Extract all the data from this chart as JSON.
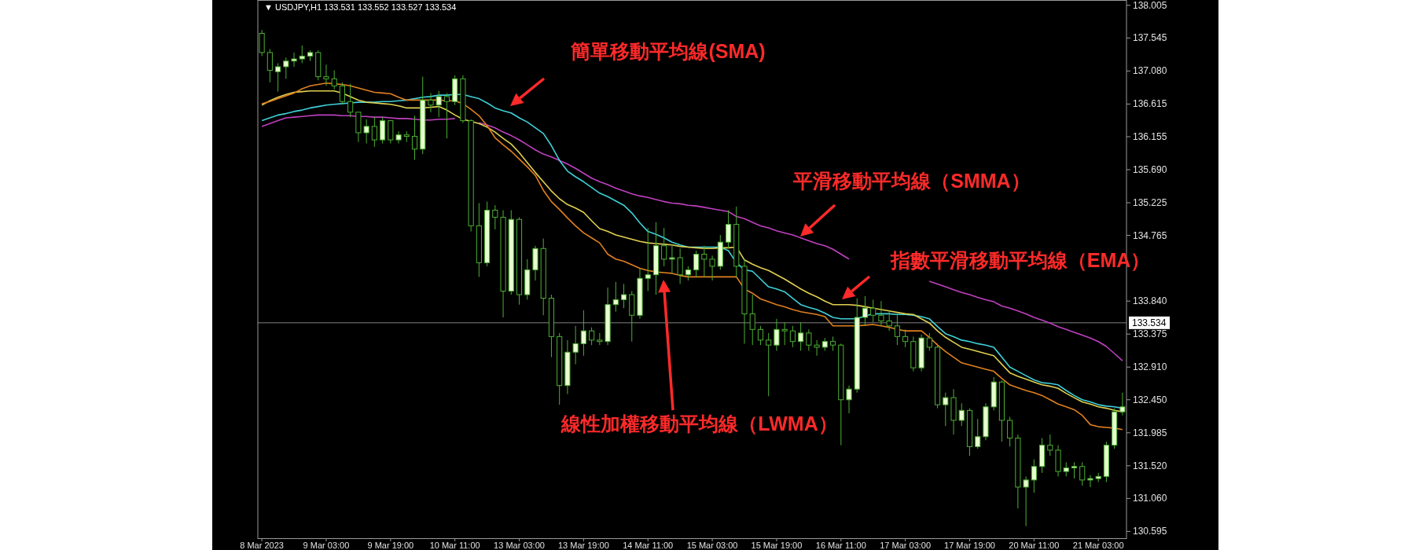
{
  "chart_data": {
    "type": "candlestick",
    "annotations": [
      "▼ USDJPY,H1  133.531 133.552 133.527 133.534",
      "簡單移動平均線(SMA)",
      "平滑移動平均線（SMMA）",
      "指數平滑移動平均線（EMA）",
      "線性加權移動平均線（LWMA）"
    ],
    "categories": [
      "8 Mar 2023",
      null,
      null,
      null,
      null,
      null,
      null,
      null,
      "9 Mar 03:00",
      null,
      null,
      null,
      null,
      null,
      null,
      null,
      "9 Mar 19:00",
      null,
      null,
      null,
      null,
      null,
      null,
      null,
      "10 Mar 11:00",
      null,
      null,
      null,
      null,
      null,
      null,
      null,
      "13 Mar 03:00",
      null,
      null,
      null,
      null,
      null,
      null,
      null,
      "13 Mar 19:00",
      null,
      null,
      null,
      null,
      null,
      null,
      null,
      "14 Mar 11:00",
      null,
      null,
      null,
      null,
      null,
      null,
      null,
      "15 Mar 03:00",
      null,
      null,
      null,
      null,
      null,
      null,
      null,
      "15 Mar 19:00",
      null,
      null,
      null,
      null,
      null,
      null,
      null,
      "16 Mar 11:00",
      null,
      null,
      null,
      null,
      null,
      null,
      null,
      "17 Mar 03:00",
      null,
      null,
      null,
      null,
      null,
      null,
      null,
      "17 Mar 19:00",
      null,
      null,
      null,
      null,
      null,
      null,
      null,
      "20 Mar 11:00",
      null,
      null,
      null,
      null,
      null,
      null,
      null,
      "21 Mar 03:00",
      null,
      null,
      null
    ],
    "ohlc": [
      [
        137.61,
        137.66,
        137.29,
        137.34
      ],
      [
        137.34,
        137.39,
        136.92,
        137.09
      ],
      [
        137.07,
        137.19,
        136.79,
        137.14
      ],
      [
        137.14,
        137.27,
        136.97,
        137.22
      ],
      [
        137.22,
        137.34,
        137.14,
        137.25
      ],
      [
        137.25,
        137.44,
        137.19,
        137.29
      ],
      [
        137.29,
        137.37,
        137.22,
        137.34
      ],
      [
        137.34,
        137.37,
        136.95,
        137.0
      ],
      [
        137.0,
        137.17,
        136.87,
        136.97
      ],
      [
        136.97,
        137.09,
        136.82,
        136.87
      ],
      [
        136.87,
        136.92,
        136.62,
        136.65
      ],
      [
        136.65,
        136.9,
        136.43,
        136.5
      ],
      [
        136.5,
        136.5,
        136.08,
        136.21
      ],
      [
        136.21,
        136.4,
        136.06,
        136.3
      ],
      [
        136.3,
        136.43,
        136.01,
        136.11
      ],
      [
        136.11,
        136.43,
        136.06,
        136.38
      ],
      [
        136.38,
        136.38,
        136.06,
        136.11
      ],
      [
        136.11,
        136.23,
        136.06,
        136.18
      ],
      [
        136.18,
        136.23,
        136.08,
        136.16
      ],
      [
        136.16,
        136.45,
        135.83,
        135.98
      ],
      [
        135.98,
        137.0,
        135.91,
        136.67
      ],
      [
        136.67,
        136.77,
        136.5,
        136.6
      ],
      [
        136.6,
        136.8,
        136.43,
        136.72
      ],
      [
        136.72,
        136.77,
        136.13,
        136.65
      ],
      [
        136.65,
        137.02,
        136.6,
        136.97
      ],
      [
        136.97,
        137.02,
        136.35,
        136.38
      ],
      [
        136.38,
        136.4,
        134.82,
        134.9
      ],
      [
        134.9,
        135.22,
        134.18,
        134.38
      ],
      [
        134.38,
        135.24,
        134.33,
        135.12
      ],
      [
        135.12,
        135.19,
        134.85,
        135.02
      ],
      [
        135.02,
        135.12,
        133.61,
        133.98
      ],
      [
        133.98,
        135.12,
        133.93,
        134.99
      ],
      [
        134.99,
        135.02,
        133.79,
        133.93
      ],
      [
        133.93,
        134.43,
        133.86,
        134.28
      ],
      [
        134.28,
        134.62,
        134.13,
        134.58
      ],
      [
        134.58,
        134.72,
        133.64,
        133.88
      ],
      [
        133.88,
        133.93,
        133.05,
        133.34
      ],
      [
        133.34,
        133.39,
        132.38,
        132.65
      ],
      [
        132.65,
        133.29,
        132.53,
        133.12
      ],
      [
        133.12,
        133.49,
        132.95,
        133.24
      ],
      [
        133.24,
        133.71,
        133.07,
        133.42
      ],
      [
        133.42,
        133.47,
        133.22,
        133.29
      ],
      [
        133.29,
        133.39,
        133.22,
        133.27
      ],
      [
        133.27,
        134.03,
        133.22,
        133.79
      ],
      [
        133.79,
        134.11,
        133.69,
        133.86
      ],
      [
        133.86,
        134.08,
        133.74,
        133.93
      ],
      [
        133.93,
        133.98,
        133.27,
        133.64
      ],
      [
        133.64,
        134.3,
        133.59,
        134.16
      ],
      [
        134.16,
        134.87,
        133.98,
        134.21
      ],
      [
        134.21,
        134.95,
        133.93,
        134.62
      ],
      [
        134.62,
        134.87,
        134.33,
        134.43
      ],
      [
        134.43,
        134.62,
        134.23,
        134.45
      ],
      [
        134.45,
        134.58,
        134.08,
        134.21
      ],
      [
        134.21,
        134.33,
        134.13,
        134.28
      ],
      [
        134.28,
        134.55,
        134.18,
        134.5
      ],
      [
        134.5,
        134.62,
        134.18,
        134.43
      ],
      [
        134.43,
        134.48,
        134.13,
        134.33
      ],
      [
        134.33,
        134.77,
        134.28,
        134.67
      ],
      [
        134.67,
        135.12,
        134.58,
        134.92
      ],
      [
        134.92,
        135.17,
        134.18,
        134.33
      ],
      [
        134.33,
        134.43,
        133.24,
        133.66
      ],
      [
        133.66,
        133.93,
        133.22,
        133.44
      ],
      [
        133.44,
        133.49,
        133.22,
        133.29
      ],
      [
        133.29,
        133.39,
        132.5,
        133.22
      ],
      [
        133.22,
        133.59,
        133.14,
        133.44
      ],
      [
        133.44,
        133.54,
        133.22,
        133.42
      ],
      [
        133.42,
        133.49,
        133.19,
        133.27
      ],
      [
        133.27,
        133.54,
        133.14,
        133.39
      ],
      [
        133.39,
        133.44,
        133.14,
        133.22
      ],
      [
        133.22,
        133.29,
        133.07,
        133.19
      ],
      [
        133.19,
        133.32,
        133.14,
        133.27
      ],
      [
        133.27,
        133.34,
        133.14,
        133.22
      ],
      [
        133.22,
        133.24,
        131.81,
        132.45
      ],
      [
        132.45,
        132.65,
        132.26,
        132.6
      ],
      [
        132.6,
        133.88,
        132.55,
        133.61
      ],
      [
        133.61,
        133.91,
        133.49,
        133.74
      ],
      [
        133.74,
        133.86,
        133.54,
        133.64
      ],
      [
        133.64,
        133.84,
        133.49,
        133.56
      ],
      [
        133.56,
        133.69,
        133.42,
        133.49
      ],
      [
        133.49,
        133.64,
        133.22,
        133.34
      ],
      [
        133.34,
        133.44,
        133.19,
        133.27
      ],
      [
        133.27,
        133.34,
        132.85,
        132.9
      ],
      [
        132.9,
        133.37,
        132.85,
        133.32
      ],
      [
        133.32,
        133.39,
        133.14,
        133.19
      ],
      [
        133.19,
        133.24,
        132.33,
        132.38
      ],
      [
        132.38,
        132.55,
        132.08,
        132.48
      ],
      [
        132.48,
        132.6,
        131.96,
        132.16
      ],
      [
        132.16,
        132.4,
        132.08,
        132.3
      ],
      [
        132.3,
        132.33,
        131.66,
        131.79
      ],
      [
        131.79,
        132.18,
        131.76,
        131.93
      ],
      [
        131.93,
        132.4,
        131.88,
        132.35
      ],
      [
        132.35,
        132.77,
        132.3,
        132.7
      ],
      [
        132.7,
        132.72,
        131.86,
        132.16
      ],
      [
        132.16,
        132.21,
        131.79,
        131.91
      ],
      [
        131.91,
        131.96,
        130.92,
        131.22
      ],
      [
        131.22,
        131.37,
        130.67,
        131.32
      ],
      [
        131.32,
        131.61,
        131.14,
        131.51
      ],
      [
        131.51,
        131.91,
        131.42,
        131.81
      ],
      [
        131.81,
        131.96,
        131.66,
        131.74
      ],
      [
        131.74,
        131.81,
        131.37,
        131.44
      ],
      [
        131.44,
        131.57,
        131.37,
        131.49
      ],
      [
        131.49,
        131.57,
        131.34,
        131.51
      ],
      [
        131.51,
        131.57,
        131.24,
        131.32
      ],
      [
        131.32,
        131.39,
        131.22,
        131.34
      ],
      [
        131.34,
        131.42,
        131.29,
        131.37
      ],
      [
        131.37,
        131.86,
        131.29,
        131.81
      ],
      [
        131.81,
        132.33,
        131.76,
        132.28
      ],
      [
        132.28,
        132.55,
        132.23,
        132.35
      ]
    ],
    "color": "#4caf32",
    "series": [
      {
        "type": "line",
        "color": "#c040c0",
        "values": [
          136.3,
          136.34,
          136.38,
          136.42,
          136.43,
          136.44,
          136.45,
          136.46,
          136.46,
          136.46,
          136.45,
          136.45,
          136.44,
          136.44,
          136.43,
          136.43,
          136.42,
          136.41,
          136.41,
          136.4,
          136.39,
          136.39,
          136.4,
          136.4,
          136.41,
          null,
          null,
          136.35,
          136.32,
          136.28,
          136.22,
          136.17,
          136.11,
          136.04,
          135.97,
          135.91,
          135.87,
          135.82,
          135.77,
          135.71,
          135.64,
          135.57,
          135.52,
          135.48,
          135.43,
          135.39,
          135.35,
          135.32,
          135.3,
          135.27,
          135.24,
          135.22,
          135.21,
          135.19,
          135.18,
          135.16,
          135.14,
          135.12,
          135.1,
          135.03,
          135.0,
          134.95,
          134.9,
          134.87,
          134.83,
          134.8,
          134.77,
          134.73,
          134.69,
          134.65,
          134.62,
          134.57,
          134.5,
          134.43,
          null,
          null,
          null,
          null,
          null,
          null,
          null,
          null,
          null,
          134.12,
          134.08,
          134.04,
          134.0,
          133.96,
          133.93,
          133.89,
          133.86,
          133.83,
          133.77,
          133.74,
          133.7,
          133.66,
          133.61,
          133.57,
          133.53,
          133.48,
          133.44,
          133.4,
          133.36,
          133.32,
          133.27,
          133.2,
          133.1,
          133.0
        ]
      },
      {
        "type": "line",
        "color": "#3fd0d8",
        "values": [
          136.38,
          136.42,
          136.46,
          136.48,
          136.51,
          136.53,
          136.56,
          136.58,
          136.6,
          136.61,
          136.62,
          136.63,
          136.64,
          136.64,
          136.64,
          136.65,
          136.65,
          136.66,
          136.67,
          136.69,
          136.71,
          136.72,
          136.74,
          136.74,
          136.75,
          136.75,
          136.72,
          136.69,
          136.63,
          136.56,
          136.52,
          136.49,
          136.42,
          136.36,
          136.28,
          136.2,
          136.03,
          135.82,
          135.67,
          135.59,
          135.52,
          135.44,
          135.36,
          135.31,
          135.25,
          135.19,
          135.08,
          134.94,
          134.82,
          134.78,
          134.73,
          134.67,
          134.63,
          134.6,
          134.6,
          134.6,
          134.6,
          134.6,
          134.55,
          134.38,
          134.28,
          134.26,
          134.15,
          134.04,
          134.01,
          133.97,
          133.88,
          133.79,
          133.75,
          133.72,
          133.67,
          133.61,
          133.59,
          133.59,
          133.59,
          133.63,
          133.66,
          133.66,
          133.66,
          133.65,
          133.65,
          133.64,
          133.62,
          133.59,
          133.48,
          133.38,
          133.34,
          133.29,
          133.27,
          133.24,
          133.22,
          133.19,
          133.05,
          132.91,
          132.85,
          132.79,
          132.73,
          132.69,
          132.68,
          132.66,
          132.58,
          132.51,
          132.45,
          132.42,
          132.38,
          132.36,
          132.35,
          132.33
        ]
      },
      {
        "type": "line",
        "color": "#e0d050",
        "values": [
          136.6,
          136.66,
          136.71,
          136.75,
          136.78,
          136.79,
          136.8,
          136.8,
          136.8,
          136.8,
          136.77,
          136.72,
          136.67,
          136.64,
          136.63,
          136.62,
          136.61,
          136.59,
          136.56,
          136.56,
          136.56,
          136.57,
          136.58,
          136.53,
          136.46,
          136.4,
          136.37,
          136.34,
          136.29,
          136.22,
          136.13,
          136.05,
          135.93,
          135.79,
          135.65,
          135.52,
          135.39,
          135.28,
          135.2,
          135.15,
          135.09,
          134.97,
          134.86,
          134.82,
          134.77,
          134.74,
          134.71,
          134.68,
          134.66,
          134.65,
          134.64,
          134.63,
          134.61,
          134.6,
          134.59,
          134.58,
          134.58,
          134.59,
          134.59,
          134.6,
          134.42,
          134.36,
          134.31,
          134.27,
          134.21,
          134.15,
          134.08,
          134.01,
          133.95,
          133.9,
          133.84,
          133.79,
          133.79,
          133.79,
          133.78,
          133.76,
          133.74,
          133.72,
          133.7,
          133.68,
          133.66,
          133.65,
          133.59,
          133.53,
          133.42,
          133.33,
          133.26,
          133.19,
          133.16,
          133.13,
          133.1,
          133.07,
          132.95,
          132.83,
          132.78,
          132.74,
          132.7,
          132.66,
          132.64,
          132.61,
          132.54,
          132.48,
          132.42,
          132.39,
          132.35,
          132.33,
          132.3,
          132.28
        ]
      },
      {
        "type": "line",
        "color": "#e08020",
        "values": [
          136.62,
          136.65,
          136.69,
          136.73,
          136.77,
          136.83,
          136.87,
          136.89,
          136.91,
          136.9,
          136.89,
          136.87,
          136.84,
          136.81,
          136.78,
          136.77,
          136.76,
          136.71,
          136.67,
          136.67,
          136.67,
          136.67,
          136.67,
          136.66,
          136.66,
          136.62,
          136.54,
          136.45,
          136.31,
          136.14,
          136.04,
          135.95,
          135.84,
          135.73,
          135.61,
          135.4,
          135.24,
          135.13,
          135.01,
          134.9,
          134.8,
          134.73,
          134.66,
          134.5,
          134.43,
          134.4,
          134.35,
          134.3,
          134.27,
          134.25,
          134.24,
          134.23,
          134.2,
          134.18,
          134.18,
          134.18,
          134.18,
          134.18,
          134.18,
          134.18,
          134.01,
          133.95,
          133.87,
          133.83,
          133.79,
          133.76,
          133.72,
          133.69,
          133.67,
          133.65,
          133.62,
          133.49,
          133.49,
          133.49,
          133.49,
          133.5,
          133.51,
          133.49,
          133.47,
          133.44,
          133.42,
          133.42,
          133.42,
          133.33,
          133.22,
          133.13,
          133.05,
          132.97,
          132.94,
          132.91,
          132.88,
          132.85,
          132.75,
          132.66,
          132.62,
          132.58,
          132.55,
          132.51,
          132.45,
          132.39,
          132.35,
          132.31,
          132.23,
          132.1,
          132.07,
          132.06,
          132.05,
          132.03
        ]
      }
    ],
    "ylim": [
      130.5,
      138.08
    ],
    "yticks": [
      {
        "value": 138.005,
        "label": "138.005"
      },
      {
        "value": 137.545,
        "label": "137.545"
      },
      {
        "value": 137.08,
        "label": "137.080"
      },
      {
        "value": 136.615,
        "label": "136.615"
      },
      {
        "value": 136.155,
        "label": "136.155"
      },
      {
        "value": 135.69,
        "label": "135.690"
      },
      {
        "value": 135.225,
        "label": "135.225"
      },
      {
        "value": 134.765,
        "label": "134.765"
      },
      {
        "value": 133.84,
        "label": "133.840"
      },
      {
        "value": 133.375,
        "label": "133.375"
      },
      {
        "value": 132.91,
        "label": "132.910"
      },
      {
        "value": 132.45,
        "label": "132.450"
      },
      {
        "value": 131.985,
        "label": "131.985"
      },
      {
        "value": 131.52,
        "label": "131.520"
      },
      {
        "value": 131.06,
        "label": "131.060"
      },
      {
        "value": 130.595,
        "label": "130.595"
      }
    ],
    "ref_lines": [
      {
        "axis": "y",
        "value": 133.534,
        "label": "133.534",
        "color": "#808080"
      }
    ],
    "grid": false
  }
}
